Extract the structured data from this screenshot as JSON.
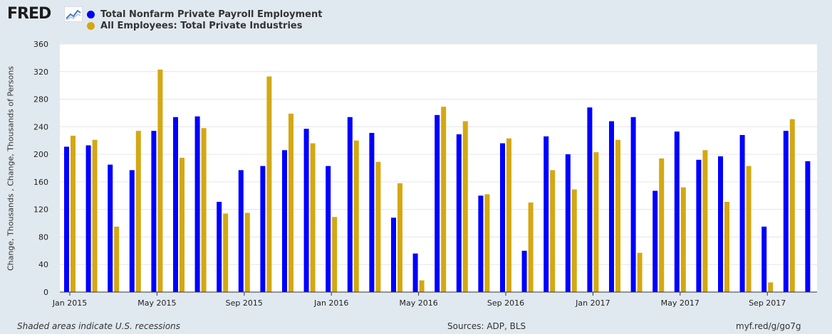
{
  "header": {
    "logo_text": "FRED",
    "logo_graph_icon": "trend-line-icon"
  },
  "legend": [
    {
      "label": "Total Nonfarm Private Payroll Employment",
      "color": "#0000ff"
    },
    {
      "label": "All Employees: Total Private Industries",
      "color": "#d4a814"
    }
  ],
  "footer": {
    "left": "Shaded areas indicate U.S. recessions",
    "center": "Sources: ADP, BLS",
    "right": "myf.red/g/go7g"
  },
  "chart_data": {
    "type": "bar",
    "ylabel": "Change, Thousands , Change, Thousands of Persons",
    "ylim": [
      0,
      360
    ],
    "yticks": [
      0,
      40,
      80,
      120,
      160,
      200,
      240,
      280,
      320,
      360
    ],
    "grid": true,
    "legend_position": "top-left",
    "x_tick_labels": [
      {
        "label": "Jan 2015",
        "index": 0
      },
      {
        "label": "May 2015",
        "index": 4
      },
      {
        "label": "Sep 2015",
        "index": 8
      },
      {
        "label": "Jan 2016",
        "index": 12
      },
      {
        "label": "May 2016",
        "index": 16
      },
      {
        "label": "Sep 2016",
        "index": 20
      },
      {
        "label": "Jan 2017",
        "index": 24
      },
      {
        "label": "May 2017",
        "index": 28
      },
      {
        "label": "Sep 2017",
        "index": 32
      }
    ],
    "categories": [
      "2015-01",
      "2015-02",
      "2015-03",
      "2015-04",
      "2015-05",
      "2015-06",
      "2015-07",
      "2015-08",
      "2015-09",
      "2015-10",
      "2015-11",
      "2015-12",
      "2016-01",
      "2016-02",
      "2016-03",
      "2016-04",
      "2016-05",
      "2016-06",
      "2016-07",
      "2016-08",
      "2016-09",
      "2016-10",
      "2016-11",
      "2016-12",
      "2017-01",
      "2017-02",
      "2017-03",
      "2017-04",
      "2017-05",
      "2017-06",
      "2017-07",
      "2017-08",
      "2017-09",
      "2017-10",
      "2017-11"
    ],
    "series": [
      {
        "name": "Total Nonfarm Private Payroll Employment",
        "color": "#0000ff",
        "values": [
          211,
          213,
          185,
          177,
          234,
          254,
          255,
          131,
          177,
          183,
          206,
          237,
          183,
          254,
          231,
          108,
          56,
          257,
          229,
          140,
          216,
          60,
          226,
          200,
          268,
          248,
          254,
          147,
          233,
          192,
          197,
          228,
          95,
          234,
          190
        ]
      },
      {
        "name": "All Employees: Total Private Industries",
        "color": "#d4a814",
        "values": [
          227,
          221,
          95,
          234,
          323,
          195,
          238,
          114,
          115,
          313,
          259,
          216,
          109,
          220,
          189,
          158,
          17,
          269,
          248,
          142,
          223,
          130,
          177,
          149,
          203,
          221,
          57,
          194,
          152,
          206,
          131,
          183,
          14,
          251,
          null
        ]
      }
    ]
  }
}
